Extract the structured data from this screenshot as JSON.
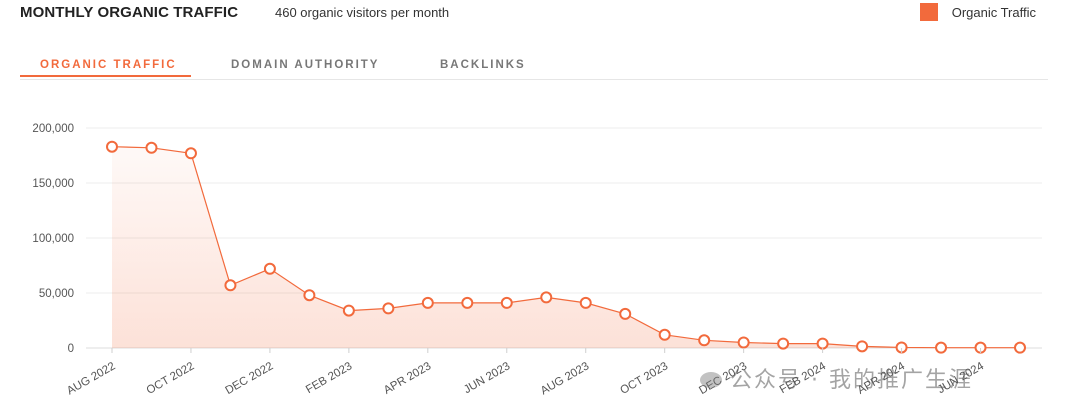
{
  "header": {
    "title": "MONTHLY ORGANIC TRAFFIC",
    "subtitle": "460 organic visitors per month"
  },
  "legend": {
    "label": "Organic Traffic",
    "color": "#f26a3c"
  },
  "tabs": [
    {
      "label": "ORGANIC TRAFFIC",
      "active": true
    },
    {
      "label": "DOMAIN AUTHORITY",
      "active": false
    },
    {
      "label": "BACKLINKS",
      "active": false
    }
  ],
  "watermark": "公众号 · 我的推广生涯",
  "chart_data": {
    "type": "area",
    "categories": [
      "AUG 2022",
      "SEP 2022",
      "OCT 2022",
      "NOV 2022",
      "DEC 2022",
      "JAN 2023",
      "FEB 2023",
      "MAR 2023",
      "APR 2023",
      "MAY 2023",
      "JUN 2023",
      "JUL 2023",
      "AUG 2023",
      "SEP 2023",
      "OCT 2023",
      "NOV 2023",
      "DEC 2023",
      "JAN 2024",
      "FEB 2024",
      "MAR 2024",
      "APR 2024",
      "MAY 2024",
      "JUN 2024",
      "JUL 2024"
    ],
    "x_tick_labels": [
      "AUG 2022",
      "",
      "OCT 2022",
      "",
      "DEC 2022",
      "",
      "FEB 2023",
      "",
      "APR 2023",
      "",
      "JUN 2023",
      "",
      "AUG 2023",
      "",
      "OCT 2023",
      "",
      "DEC 2023",
      "",
      "FEB 2024",
      "",
      "APR 2024",
      "",
      "JUN 2024",
      ""
    ],
    "series": [
      {
        "name": "Organic Traffic",
        "color": "#f26a3c",
        "values": [
          183000,
          182000,
          177000,
          57000,
          72000,
          48000,
          34000,
          36000,
          41000,
          41000,
          41000,
          46000,
          41000,
          31000,
          12000,
          7000,
          5000,
          4000,
          4000,
          1500,
          500,
          300,
          300,
          300
        ]
      }
    ],
    "ylim": [
      0,
      200000
    ],
    "y_ticks": [
      0,
      50000,
      100000,
      150000,
      200000
    ],
    "y_tick_labels": [
      "0",
      "50,000",
      "100,000",
      "150,000",
      "200,000"
    ],
    "grid": true,
    "legend_position": "top-right",
    "xlabel": "",
    "ylabel": ""
  }
}
